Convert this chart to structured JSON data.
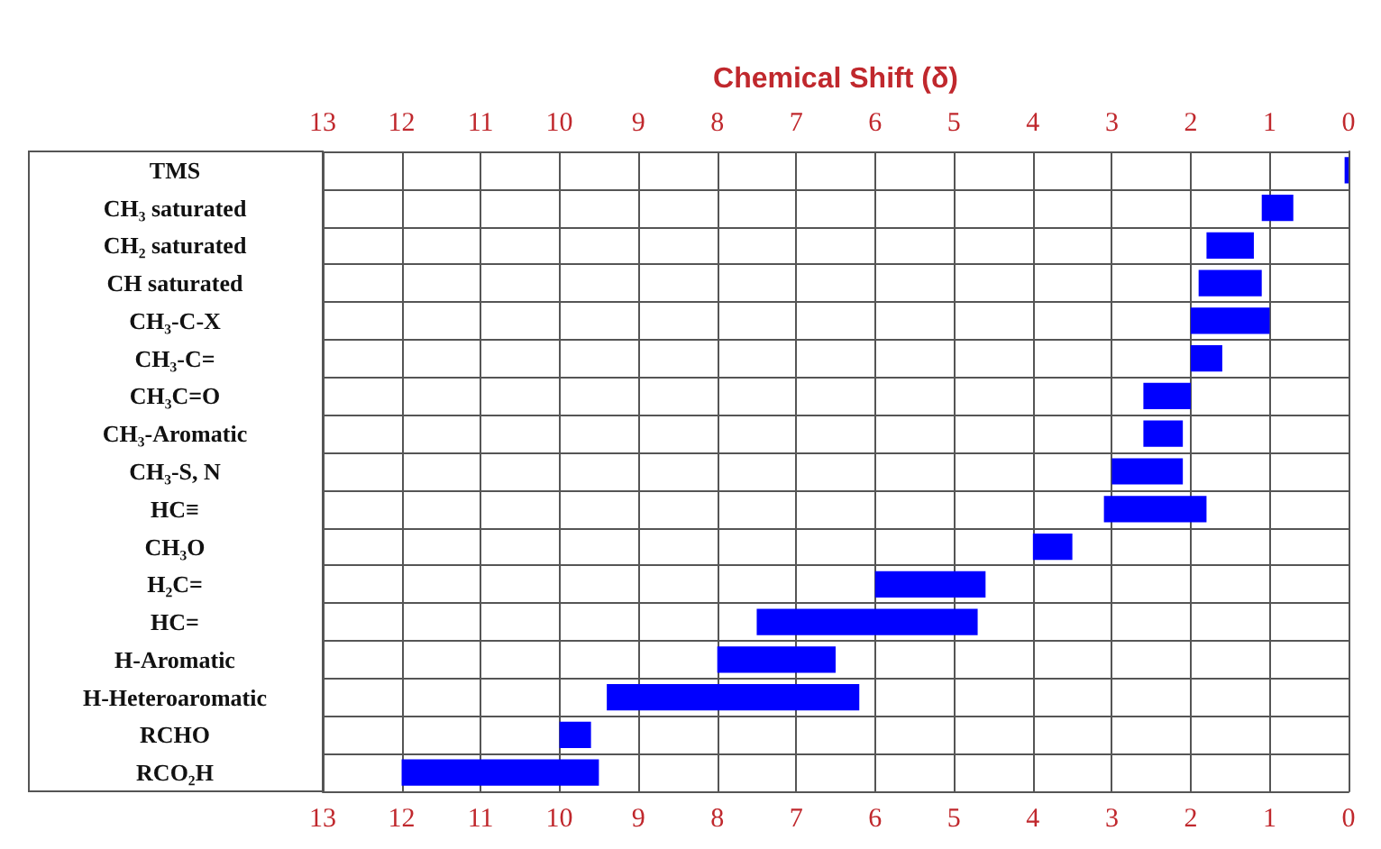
{
  "chart_data": {
    "type": "bar",
    "orientation": "horizontal",
    "x2label": "Chemical Shift (δ)",
    "categories": [
      "TMS",
      "CH₃ saturated",
      "CH₂ saturated",
      "CH saturated",
      "CH₃-C-X",
      "CH₃-C=",
      "CH₃C=O",
      "CH₃-Aromatic",
      "CH₃-S, N",
      "HC≡",
      "CH₃O",
      "H₂C=",
      "HC=",
      "H-Aromatic",
      "H-Heteroaromatic",
      "RCHO",
      "RCO₂H"
    ],
    "base": [
      0,
      0.7,
      1.2,
      1.1,
      1.0,
      1.6,
      2.0,
      2.1,
      2.1,
      1.8,
      3.5,
      4.6,
      4.7,
      6.5,
      6.2,
      9.6,
      9.5
    ],
    "values": [
      0.05,
      0.4,
      0.6,
      0.8,
      1.0,
      0.4,
      0.6,
      0.5,
      0.9,
      1.3,
      0.5,
      1.4,
      2.8,
      1.5,
      3.2,
      0.4,
      2.5
    ],
    "color": "#0000ff",
    "xlim": [
      13,
      0
    ],
    "xticks": [
      13,
      12,
      11,
      10,
      9,
      8,
      7,
      6,
      5,
      4,
      3,
      2,
      1,
      0
    ],
    "x2lim": [
      13,
      0
    ],
    "x2ticks": [
      13,
      12,
      11,
      10,
      9,
      8,
      7,
      6,
      5,
      4,
      3,
      2,
      1,
      0
    ],
    "grid": true
  }
}
